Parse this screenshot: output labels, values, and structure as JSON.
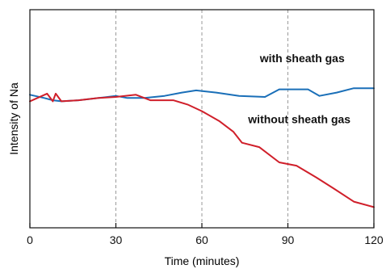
{
  "chart_data": {
    "type": "line",
    "title": "",
    "xlabel": "Time (minutes)",
    "ylabel": "Intensity of Na",
    "xlim": [
      0,
      120
    ],
    "ylim": [
      0,
      10
    ],
    "x_ticks": [
      0,
      30,
      60,
      90,
      120
    ],
    "x_tick_labels": [
      "0",
      "30",
      "60",
      "90",
      "120"
    ],
    "y_ticks": [],
    "grid": "vertical dashed at 30, 60, 90",
    "legend": "none",
    "series": [
      {
        "name": "with sheath gas",
        "color": "#1a6fb8",
        "x": [
          0,
          5,
          8,
          11,
          17,
          24,
          30,
          34,
          40,
          47,
          53,
          58,
          65,
          73,
          82,
          87,
          92,
          97,
          101,
          107,
          113,
          120
        ],
        "y": [
          6.1,
          5.95,
          5.85,
          5.8,
          5.85,
          5.95,
          6.05,
          5.95,
          5.95,
          6.05,
          6.2,
          6.3,
          6.2,
          6.05,
          6.0,
          6.35,
          6.35,
          6.35,
          6.05,
          6.2,
          6.4,
          6.4
        ]
      },
      {
        "name": "without sheath gas",
        "color": "#d01f2a",
        "x": [
          0,
          6,
          8,
          9,
          11,
          17,
          24,
          30,
          37,
          42,
          50,
          55,
          60,
          66,
          71,
          74,
          80,
          87,
          93,
          100,
          106,
          113,
          120
        ],
        "y": [
          5.8,
          6.15,
          5.8,
          6.15,
          5.8,
          5.85,
          5.95,
          6.0,
          6.1,
          5.85,
          5.85,
          5.65,
          5.35,
          4.9,
          4.4,
          3.9,
          3.7,
          3.0,
          2.85,
          2.3,
          1.8,
          1.2,
          0.95
        ]
      }
    ],
    "annotations": [
      {
        "text": "with sheath gas",
        "x": 95,
        "y": 7.6
      },
      {
        "text": "without sheath gas",
        "x": 94,
        "y": 4.8
      }
    ]
  },
  "styles": {
    "axis_color": "#111111",
    "grid_color": "#9a9a9a"
  }
}
